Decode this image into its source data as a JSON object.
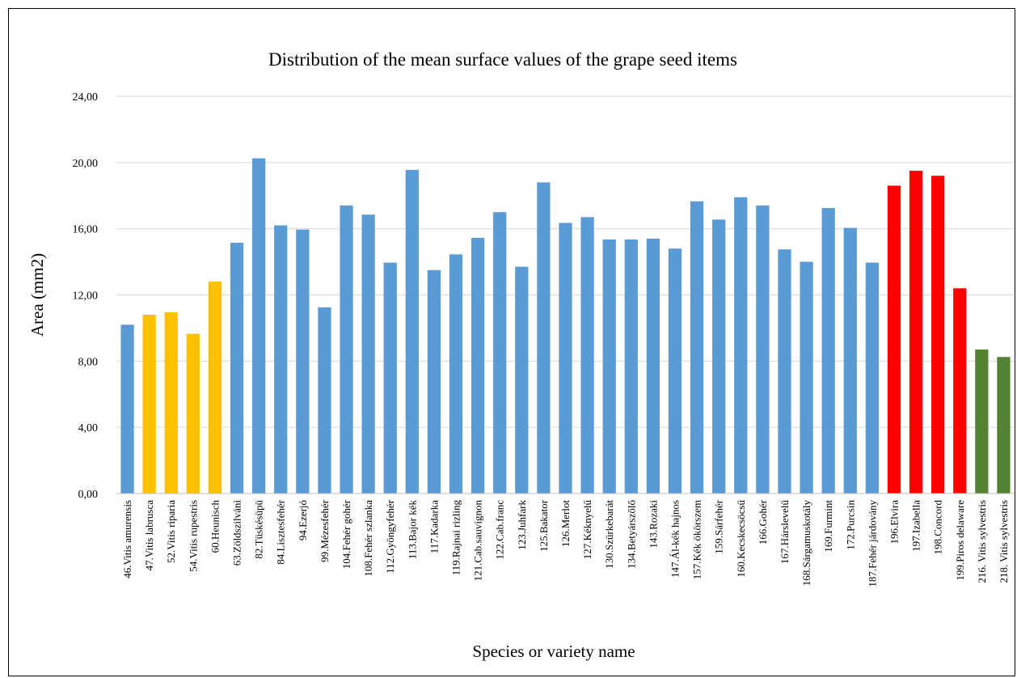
{
  "chart_data": {
    "type": "bar",
    "title": "Distribution of the mean surface values of the grape seed items",
    "xlabel": "Species or variety name",
    "ylabel": "Area (mm2)",
    "ylim": [
      0,
      24
    ],
    "yticks": [
      "0,00",
      "4,00",
      "8,00",
      "12,00",
      "16,00",
      "20,00",
      "24,00"
    ],
    "grid": true,
    "legend": "none",
    "categories": [
      "46.Vitis amurensis",
      "47.Vitis labrusca",
      "52.Vitis riparia",
      "54.Vitis rupestris",
      "60.Heunisch",
      "63.Zöldszilváni",
      "82.Tüskésüpü",
      "84.Lisztesfehér",
      "94.Ezerjó",
      "99.Mézesfehér",
      "104.Fehér gohér",
      "108.Fehér szlanka",
      "112.Gyöngyfehér",
      "113.Bajor kék",
      "117.Kadarka",
      "119.Rajnai rizling",
      "121.Cab.sauvignon",
      "122.Cab.franc",
      "123.Juhfark",
      "125.Bakator",
      "126.Merlot",
      "127.Kéknyelű",
      "130.Szürkebarát",
      "134.Betyárszőlő",
      "143.Rozaki",
      "147.Ál-kék hajnos",
      "157.Kék ökörszem",
      "159.Sárfehér",
      "160.Kecskecsöcsű",
      "166.Gohér",
      "167.Hárslevelű",
      "168.Sárgamuskotály",
      "169.Furmint",
      "172.Purcsin",
      "187.Fehér járdovány",
      "196.Elvira",
      "197.Izabella",
      "198.Concord",
      "199.Piros delaware",
      "216. Vitis sylvestris",
      "218. Vitis sylvestris"
    ],
    "values": [
      10.2,
      10.8,
      10.95,
      9.65,
      12.8,
      15.15,
      20.25,
      16.2,
      15.95,
      11.25,
      17.4,
      16.85,
      13.95,
      19.55,
      13.5,
      14.45,
      15.45,
      17.0,
      13.7,
      18.8,
      16.35,
      16.7,
      15.35,
      15.35,
      15.4,
      14.8,
      17.65,
      16.55,
      17.9,
      17.4,
      14.75,
      14.0,
      17.25,
      16.05,
      13.95,
      18.6,
      19.5,
      19.2,
      12.4,
      8.7,
      8.25
    ],
    "colors": [
      "#5b9bd5",
      "#ffc000",
      "#ffc000",
      "#ffc000",
      "#ffc000",
      "#5b9bd5",
      "#5b9bd5",
      "#5b9bd5",
      "#5b9bd5",
      "#5b9bd5",
      "#5b9bd5",
      "#5b9bd5",
      "#5b9bd5",
      "#5b9bd5",
      "#5b9bd5",
      "#5b9bd5",
      "#5b9bd5",
      "#5b9bd5",
      "#5b9bd5",
      "#5b9bd5",
      "#5b9bd5",
      "#5b9bd5",
      "#5b9bd5",
      "#5b9bd5",
      "#5b9bd5",
      "#5b9bd5",
      "#5b9bd5",
      "#5b9bd5",
      "#5b9bd5",
      "#5b9bd5",
      "#5b9bd5",
      "#5b9bd5",
      "#5b9bd5",
      "#5b9bd5",
      "#5b9bd5",
      "#ff0000",
      "#ff0000",
      "#ff0000",
      "#ff0000",
      "#548235",
      "#548235"
    ]
  }
}
